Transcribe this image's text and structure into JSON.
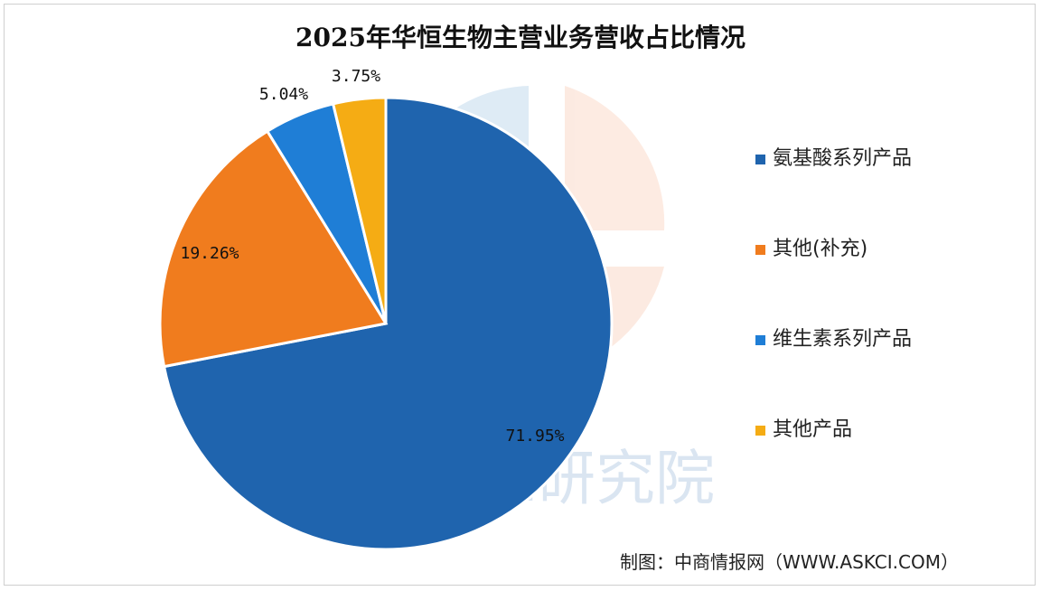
{
  "chart_data": {
    "type": "pie",
    "title": "2025年华恒生物主营业务营收占比情况",
    "categories": [
      "氨基酸系列产品",
      "其他(补充)",
      "维生素系列产品",
      "其他产品"
    ],
    "values": [
      71.95,
      19.26,
      5.04,
      3.75
    ],
    "value_labels": [
      "71.95%",
      "19.26%",
      "5.04%",
      "3.75%"
    ],
    "colors": [
      "#1f64ae",
      "#f07c1e",
      "#1f7ed6",
      "#f5ac14"
    ],
    "legend_position": "right"
  },
  "source": "制图：中商情报网（WWW.ASKCI.COM）",
  "watermark": {
    "text": "中商产业研究院"
  }
}
